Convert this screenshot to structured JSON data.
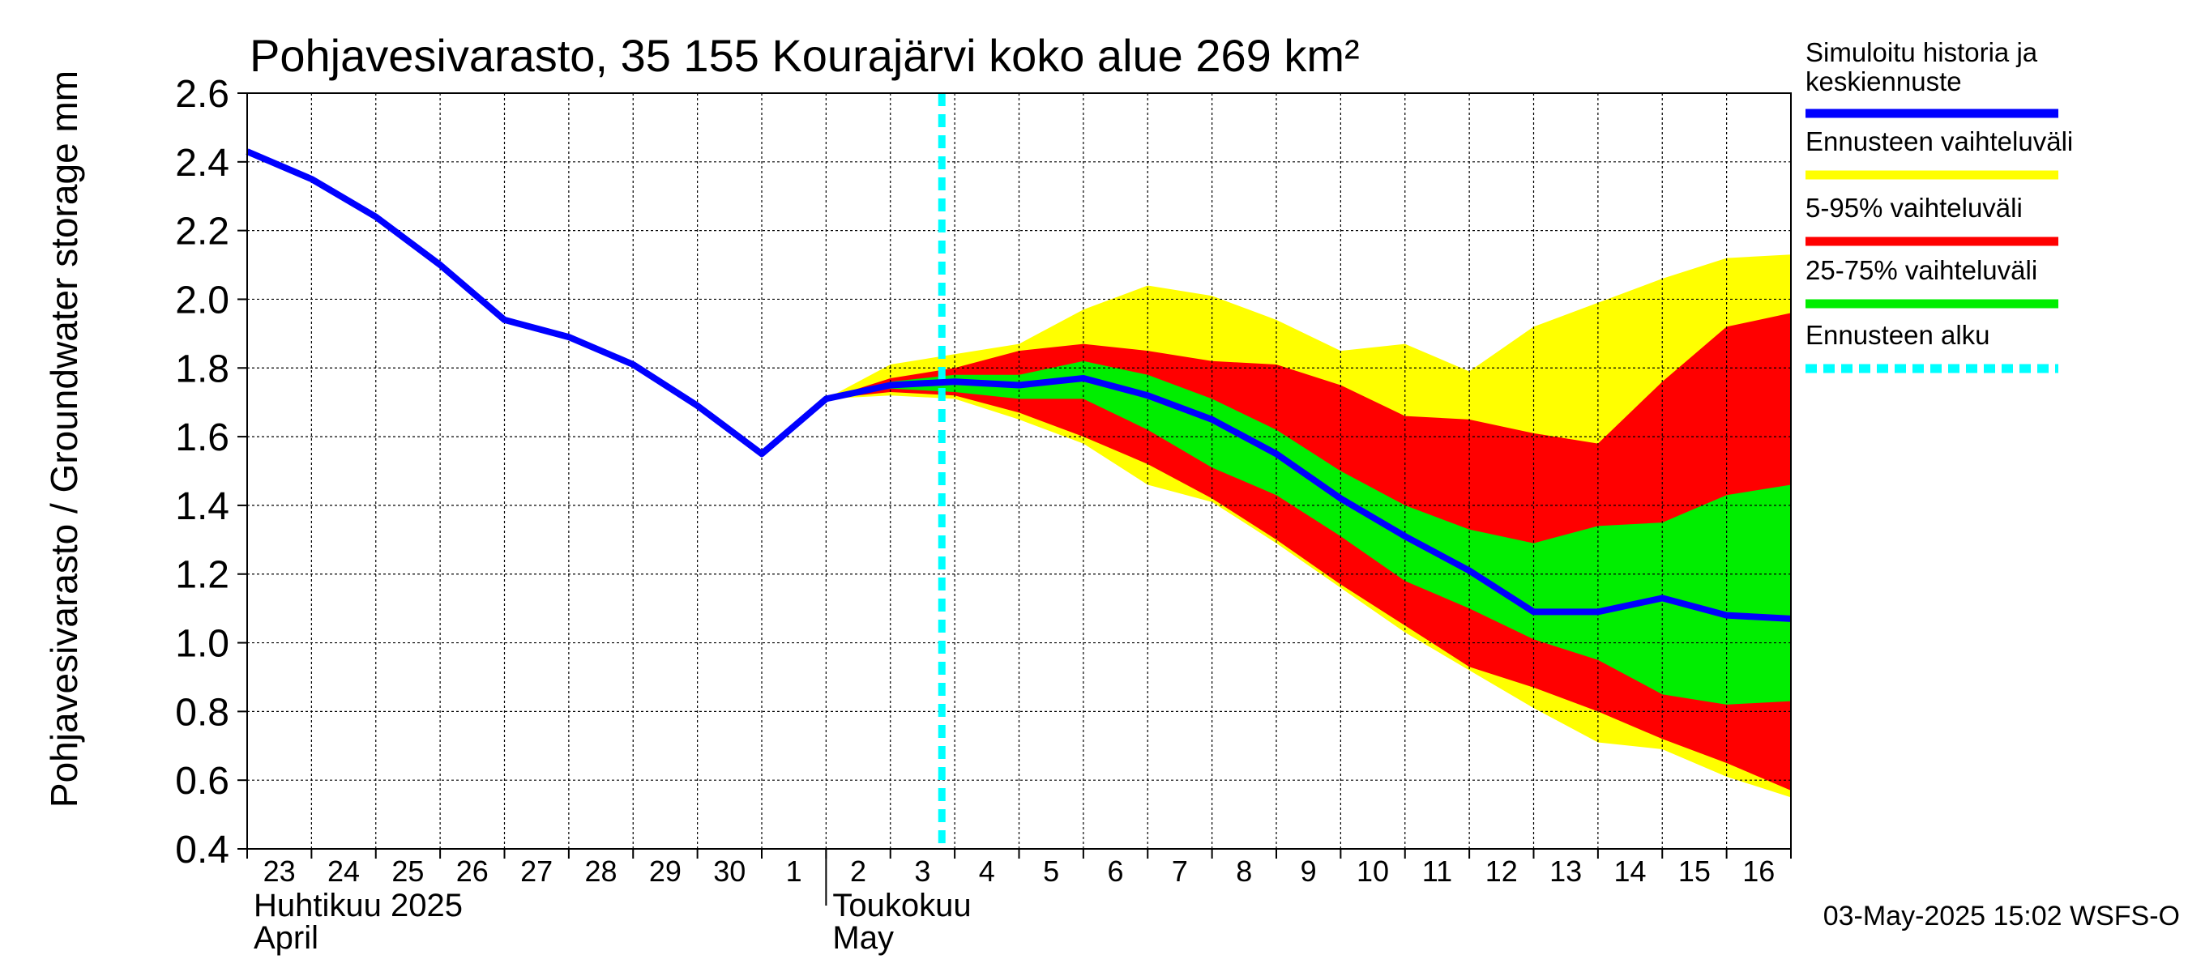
{
  "chart_data": {
    "type": "area",
    "title": "Pohjavesivarasto, 35 155 Kourajärvi koko alue 269 km²",
    "ylabel": "Pohjavesivarasto / Groundwater storage   mm",
    "ylim": [
      0.4,
      2.6
    ],
    "yticks": [
      "2.6",
      "2.4",
      "2.2",
      "2.0",
      "1.8",
      "1.6",
      "1.4",
      "1.2",
      "1.0",
      "0.8",
      "0.6",
      "0.4"
    ],
    "grid": true,
    "x_day_labels": [
      "23",
      "24",
      "25",
      "26",
      "27",
      "28",
      "29",
      "30",
      "1",
      "2",
      "3",
      "4",
      "5",
      "6",
      "7",
      "8",
      "9",
      "10",
      "11",
      "12",
      "13",
      "14",
      "15",
      "16"
    ],
    "month_labels": [
      {
        "fi": "Huhtikuu  2025",
        "en": "April",
        "start_day": 0
      },
      {
        "fi": "Toukokuu",
        "en": "May",
        "start_day": 9
      }
    ],
    "forecast_start_day": 10.8,
    "x": [
      0,
      1,
      2,
      3,
      4,
      5,
      6,
      7,
      8,
      9,
      10,
      11,
      12,
      13,
      14,
      15,
      16,
      17,
      18,
      19,
      20,
      21,
      22,
      23,
      24
    ],
    "series": [
      {
        "name": "Simuloitu historia ja keskiennuste",
        "type": "line",
        "values": [
          2.43,
          2.35,
          2.24,
          2.1,
          1.94,
          1.89,
          1.81,
          1.69,
          1.55,
          1.71,
          1.75,
          1.76,
          1.75,
          1.77,
          1.72,
          1.65,
          1.55,
          1.42,
          1.31,
          1.21,
          1.09,
          1.09,
          1.13,
          1.08,
          1.07
        ]
      }
    ],
    "bands": [
      {
        "name": "Ennusteen vaihteluväli",
        "x0": 9,
        "upper": [
          1.71,
          1.81,
          1.84,
          1.87,
          1.97,
          2.04,
          2.01,
          1.94,
          1.85,
          1.87,
          1.79,
          1.92,
          1.99,
          2.06,
          2.12,
          2.13
        ],
        "lower": [
          1.71,
          1.72,
          1.71,
          1.65,
          1.58,
          1.46,
          1.41,
          1.29,
          1.16,
          1.03,
          0.92,
          0.81,
          0.71,
          0.69,
          0.61,
          0.55
        ]
      },
      {
        "name": "5-95% vaihteluväli",
        "x0": 9,
        "upper": [
          1.71,
          1.77,
          1.8,
          1.85,
          1.87,
          1.85,
          1.82,
          1.81,
          1.75,
          1.66,
          1.65,
          1.61,
          1.58,
          1.76,
          1.92,
          1.96
        ],
        "lower": [
          1.71,
          1.73,
          1.72,
          1.67,
          1.6,
          1.52,
          1.42,
          1.3,
          1.17,
          1.05,
          0.93,
          0.87,
          0.8,
          0.72,
          0.65,
          0.57
        ]
      },
      {
        "name": "25-75% vaihteluväli",
        "x0": 9,
        "upper": [
          1.71,
          1.76,
          1.78,
          1.78,
          1.82,
          1.78,
          1.71,
          1.62,
          1.5,
          1.4,
          1.33,
          1.29,
          1.34,
          1.35,
          1.43,
          1.46
        ],
        "lower": [
          1.71,
          1.74,
          1.73,
          1.71,
          1.71,
          1.62,
          1.51,
          1.43,
          1.31,
          1.18,
          1.1,
          1.01,
          0.95,
          0.85,
          0.82,
          0.83
        ]
      }
    ],
    "legend": {
      "placement": "right",
      "items": [
        {
          "label": "Simuloitu historia ja keskiennuste",
          "color": "#0000ff",
          "style": "line"
        },
        {
          "label": "Ennusteen vaihteluväli",
          "color": "#ffff00",
          "style": "band"
        },
        {
          "label": "5-95% vaihteluväli",
          "color": "#ff0000",
          "style": "band"
        },
        {
          "label": "25-75% vaihteluväli",
          "color": "#00ee00",
          "style": "band"
        },
        {
          "label": "Ennusteen alku",
          "color": "#00ffff",
          "style": "dashed"
        }
      ]
    },
    "footer": "03-May-2025 15:02 WSFS-O"
  }
}
